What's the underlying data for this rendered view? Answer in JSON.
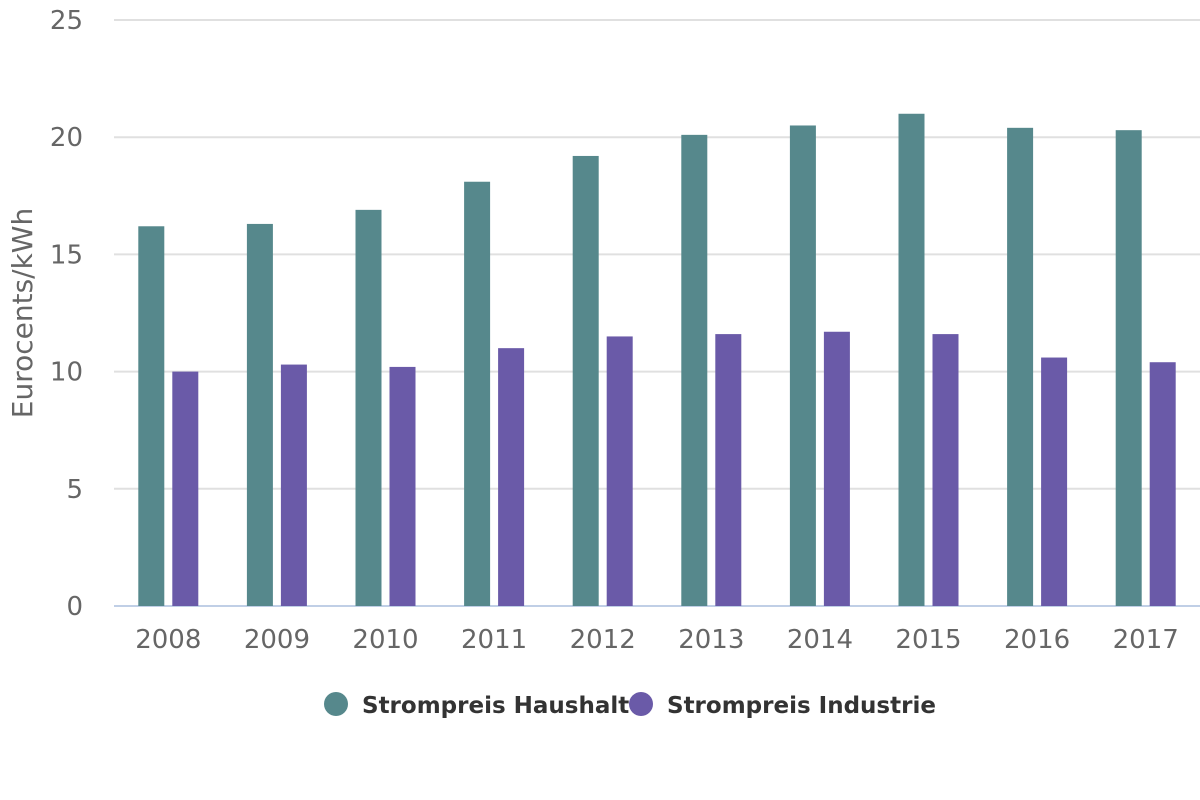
{
  "chart_data": {
    "type": "bar",
    "title": "",
    "xlabel": "",
    "ylabel": "Eurocents/kWh",
    "ylim": [
      0,
      25
    ],
    "yticks": [
      0,
      5,
      10,
      15,
      20,
      25
    ],
    "grid": true,
    "legend_position": "bottom-center",
    "categories": [
      "2008",
      "2009",
      "2010",
      "2011",
      "2012",
      "2013",
      "2014",
      "2015",
      "2016",
      "2017"
    ],
    "series": [
      {
        "name": "Strompreis Haushalte",
        "color": "#56888c",
        "values": [
          16.2,
          16.3,
          16.9,
          18.1,
          19.2,
          20.1,
          20.5,
          21.0,
          20.4,
          20.3
        ]
      },
      {
        "name": "Strompreis Industrie",
        "color": "#6a5aa8",
        "values": [
          10.0,
          10.3,
          10.2,
          11.0,
          11.5,
          11.6,
          11.7,
          11.6,
          10.6,
          10.4
        ]
      }
    ]
  }
}
